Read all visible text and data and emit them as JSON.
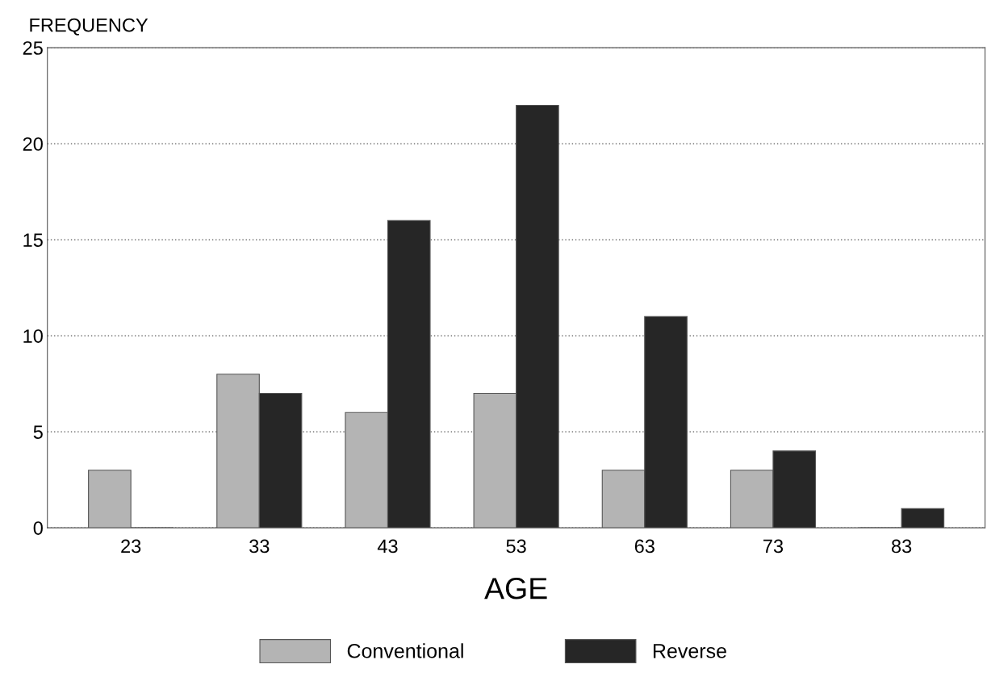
{
  "chart_data": {
    "type": "bar",
    "xlabel": "AGE",
    "ylabel": "FREQUENCY",
    "categories": [
      "23",
      "33",
      "43",
      "53",
      "63",
      "73",
      "83"
    ],
    "series": [
      {
        "name": "Conventional",
        "color": "#b4b4b4",
        "values": [
          3,
          8,
          6,
          7,
          3,
          3,
          0
        ]
      },
      {
        "name": "Reverse",
        "color": "#262626",
        "values": [
          0,
          7,
          16,
          22,
          11,
          4,
          1
        ]
      }
    ],
    "ylim": [
      0,
      25
    ],
    "yticks": [
      0,
      5,
      10,
      15,
      20,
      25
    ],
    "grid": "y",
    "legend": "bottom"
  }
}
